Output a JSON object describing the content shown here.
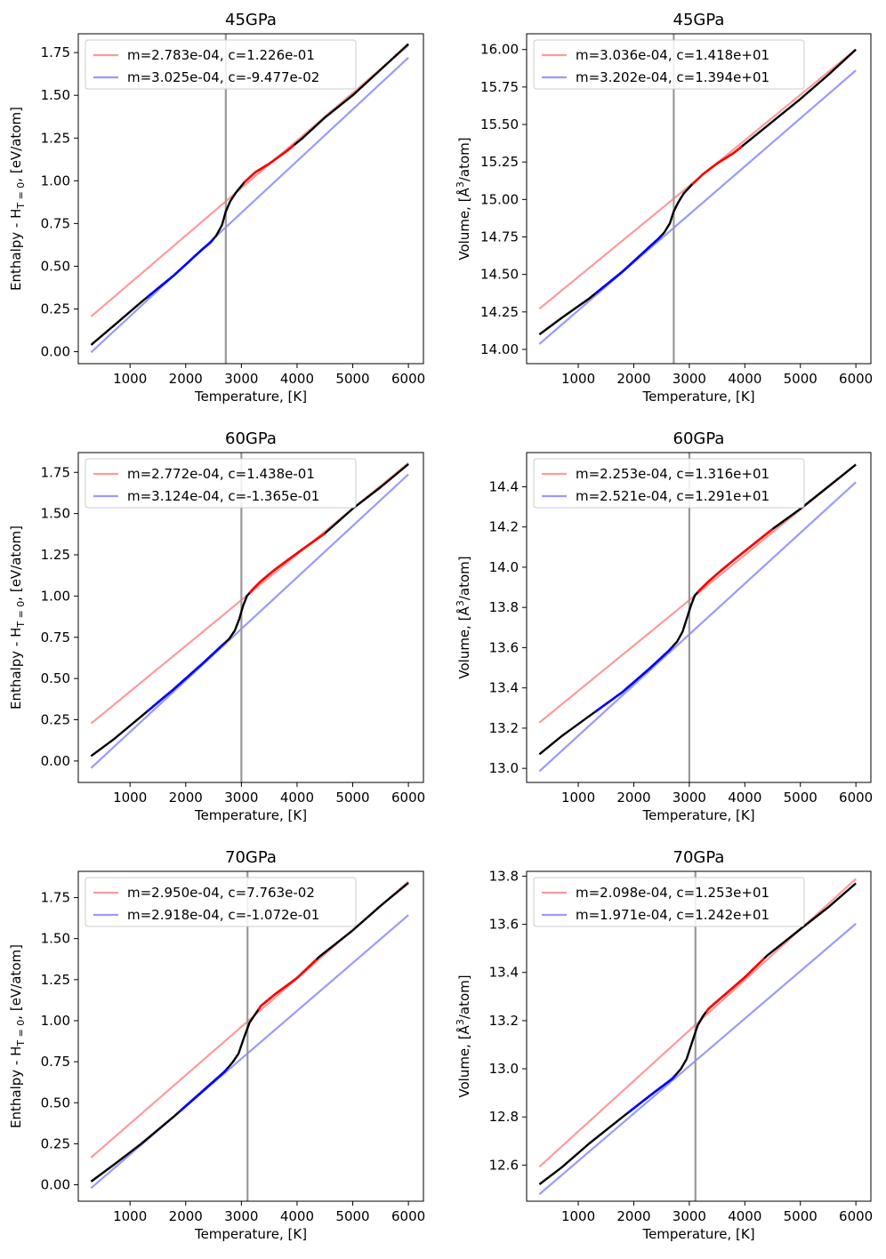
{
  "colors": {
    "red_fit": "#ff9a9a",
    "blue_fit": "#9a9aff",
    "red_data": "#ff0000",
    "blue_data": "#0000ff",
    "data": "#000000",
    "transition": "#999999"
  },
  "chart_data": [
    {
      "type": "line",
      "title": "45GPa",
      "xlabel": "Temperature, [K]",
      "ylabel": {
        "prefix": "Enthalpy - H",
        "sub": "T = 0",
        "suffix": ", [eV/atom]"
      },
      "xlim": [
        70,
        6270
      ],
      "ylim": [
        -0.07,
        1.86
      ],
      "xticks": [
        1000,
        2000,
        3000,
        4000,
        5000,
        6000
      ],
      "xtick_labels": [
        "1000",
        "2000",
        "3000",
        "4000",
        "5000",
        "6000"
      ],
      "yticks": [
        0.0,
        0.25,
        0.5,
        0.75,
        1.0,
        1.25,
        1.5,
        1.75
      ],
      "ytick_labels": [
        "0.00",
        "0.25",
        "0.50",
        "0.75",
        "1.00",
        "1.25",
        "1.50",
        "1.75"
      ],
      "transition_T": 2720,
      "legend": [
        "m=2.783e-04, c=1.226e-01",
        "m=3.025e-04, c=-9.477e-02"
      ],
      "fits": [
        {
          "m": 0.0002783,
          "c": 0.1226,
          "x": [
            300,
            6000
          ]
        },
        {
          "m": 0.0003025,
          "c": -0.09477,
          "x": [
            300,
            6000
          ]
        }
      ],
      "data": {
        "x": [
          300,
          700,
          1200,
          1800,
          2300,
          2450,
          2550,
          2650,
          2720,
          2800,
          2900,
          3050,
          3250,
          3500,
          3800,
          4100,
          4500,
          5000,
          5500,
          6000
        ],
        "y": [
          0.04,
          0.15,
          0.29,
          0.45,
          0.6,
          0.64,
          0.68,
          0.74,
          0.82,
          0.88,
          0.93,
          0.99,
          1.05,
          1.1,
          1.17,
          1.25,
          1.37,
          1.5,
          1.65,
          1.8
        ]
      },
      "colored_ranges": {
        "blue": [
          1300,
          2500
        ],
        "red": [
          3050,
          3950
        ]
      }
    },
    {
      "type": "line",
      "title": "45GPa",
      "xlabel": "Temperature, [K]",
      "ylabel": {
        "prefix": "Volume, [Å",
        "sup": "3",
        "suffix": "/atom]"
      },
      "xlim": [
        70,
        6270
      ],
      "ylim": [
        13.905,
        16.105
      ],
      "xticks": [
        1000,
        2000,
        3000,
        4000,
        5000,
        6000
      ],
      "xtick_labels": [
        "1000",
        "2000",
        "3000",
        "4000",
        "5000",
        "6000"
      ],
      "yticks": [
        14.0,
        14.25,
        14.5,
        14.75,
        15.0,
        15.25,
        15.5,
        15.75,
        16.0
      ],
      "ytick_labels": [
        "14.00",
        "14.25",
        "14.50",
        "14.75",
        "15.00",
        "15.25",
        "15.50",
        "15.75",
        "16.00"
      ],
      "transition_T": 2720,
      "legend": [
        "m=3.036e-04, c=1.418e+01",
        "m=3.202e-04, c=1.394e+01"
      ],
      "fits": [
        {
          "m": 0.0003036,
          "c": 14.18,
          "x": [
            300,
            6000
          ]
        },
        {
          "m": 0.0003202,
          "c": 13.94,
          "x": [
            300,
            6000
          ]
        }
      ],
      "data": {
        "x": [
          300,
          700,
          1200,
          1800,
          2300,
          2450,
          2550,
          2650,
          2720,
          2800,
          2900,
          3050,
          3250,
          3500,
          3800,
          4100,
          4500,
          5000,
          5500,
          6000
        ],
        "y": [
          14.1,
          14.21,
          14.34,
          14.52,
          14.69,
          14.74,
          14.78,
          14.84,
          14.92,
          14.98,
          15.04,
          15.1,
          15.17,
          15.24,
          15.31,
          15.4,
          15.52,
          15.67,
          15.83,
          16.0
        ]
      },
      "colored_ranges": {
        "blue": [
          1300,
          2500
        ],
        "red": [
          3050,
          3950
        ]
      }
    },
    {
      "type": "line",
      "title": "60GPa",
      "xlabel": "Temperature, [K]",
      "ylabel": {
        "prefix": "Enthalpy - H",
        "sub": "T = 0",
        "suffix": ", [eV/atom]"
      },
      "xlim": [
        70,
        6270
      ],
      "ylim": [
        -0.13,
        1.87
      ],
      "xticks": [
        1000,
        2000,
        3000,
        4000,
        5000,
        6000
      ],
      "xtick_labels": [
        "1000",
        "2000",
        "3000",
        "4000",
        "5000",
        "6000"
      ],
      "yticks": [
        0.0,
        0.25,
        0.5,
        0.75,
        1.0,
        1.25,
        1.5,
        1.75
      ],
      "ytick_labels": [
        "0.00",
        "0.25",
        "0.50",
        "0.75",
        "1.00",
        "1.25",
        "1.50",
        "1.75"
      ],
      "transition_T": 3000,
      "legend": [
        "m=2.772e-04, c=1.438e-01",
        "m=3.124e-04, c=-1.365e-01"
      ],
      "fits": [
        {
          "m": 0.0002772,
          "c": 0.1438,
          "x": [
            300,
            6000
          ]
        },
        {
          "m": 0.0003124,
          "c": -0.1365,
          "x": [
            300,
            6000
          ]
        }
      ],
      "data": {
        "x": [
          300,
          700,
          1200,
          1800,
          2300,
          2650,
          2780,
          2880,
          2960,
          3030,
          3100,
          3200,
          3350,
          3600,
          4000,
          4500,
          5000,
          5500,
          6000
        ],
        "y": [
          0.03,
          0.13,
          0.27,
          0.44,
          0.59,
          0.7,
          0.74,
          0.79,
          0.86,
          0.94,
          1.0,
          1.04,
          1.09,
          1.16,
          1.26,
          1.38,
          1.53,
          1.66,
          1.8
        ]
      },
      "colored_ranges": {
        "blue": [
          1300,
          2700
        ],
        "red": [
          3150,
          4500
        ]
      }
    },
    {
      "type": "line",
      "title": "60GPa",
      "xlabel": "Temperature, [K]",
      "ylabel": {
        "prefix": "Volume, [Å",
        "sup": "3",
        "suffix": "/atom]"
      },
      "xlim": [
        70,
        6270
      ],
      "ylim": [
        12.93,
        14.57
      ],
      "xticks": [
        1000,
        2000,
        3000,
        4000,
        5000,
        6000
      ],
      "xtick_labels": [
        "1000",
        "2000",
        "3000",
        "4000",
        "5000",
        "6000"
      ],
      "yticks": [
        13.0,
        13.2,
        13.4,
        13.6,
        13.8,
        14.0,
        14.2,
        14.4
      ],
      "ytick_labels": [
        "13.0",
        "13.2",
        "13.4",
        "13.6",
        "13.8",
        "14.0",
        "14.2",
        "14.4"
      ],
      "transition_T": 3000,
      "legend": [
        "m=2.253e-04, c=1.316e+01",
        "m=2.521e-04, c=1.291e+01"
      ],
      "fits": [
        {
          "m": 0.0002253,
          "c": 13.16,
          "x": [
            300,
            6000
          ]
        },
        {
          "m": 0.0002521,
          "c": 12.91,
          "x": [
            300,
            6000
          ]
        }
      ],
      "data": {
        "x": [
          300,
          700,
          1200,
          1800,
          2300,
          2650,
          2780,
          2880,
          2960,
          3030,
          3100,
          3200,
          3350,
          3600,
          4000,
          4500,
          5000,
          5500,
          6000
        ],
        "y": [
          13.07,
          13.16,
          13.26,
          13.38,
          13.5,
          13.59,
          13.63,
          13.68,
          13.75,
          13.81,
          13.86,
          13.89,
          13.93,
          13.99,
          14.08,
          14.19,
          14.29,
          14.4,
          14.51
        ]
      },
      "colored_ranges": {
        "blue": [
          1300,
          2700
        ],
        "red": [
          3150,
          4500
        ]
      }
    },
    {
      "type": "line",
      "title": "70GPa",
      "xlabel": "Temperature, [K]",
      "ylabel": {
        "prefix": "Enthalpy - H",
        "sub": "T = 0",
        "suffix": ", [eV/atom]"
      },
      "xlim": [
        70,
        6270
      ],
      "ylim": [
        -0.1,
        1.91
      ],
      "xticks": [
        1000,
        2000,
        3000,
        4000,
        5000,
        6000
      ],
      "xtick_labels": [
        "1000",
        "2000",
        "3000",
        "4000",
        "5000",
        "6000"
      ],
      "yticks": [
        0.0,
        0.25,
        0.5,
        0.75,
        1.0,
        1.25,
        1.5,
        1.75
      ],
      "ytick_labels": [
        "0.00",
        "0.25",
        "0.50",
        "0.75",
        "1.00",
        "1.25",
        "1.50",
        "1.75"
      ],
      "transition_T": 3110,
      "legend": [
        "m=2.950e-04, c=7.763e-02",
        "m=2.918e-04, c=-1.072e-01"
      ],
      "fits": [
        {
          "m": 0.000295,
          "c": 0.07763,
          "x": [
            300,
            6000
          ]
        },
        {
          "m": 0.0002918,
          "c": -0.1072,
          "x": [
            300,
            6000
          ]
        }
      ],
      "data": {
        "x": [
          300,
          700,
          1200,
          1800,
          2300,
          2700,
          2850,
          2950,
          3050,
          3150,
          3250,
          3350,
          3600,
          4000,
          4400,
          5000,
          5500,
          6000
        ],
        "y": [
          0.02,
          0.12,
          0.25,
          0.42,
          0.57,
          0.69,
          0.75,
          0.8,
          0.9,
          0.99,
          1.04,
          1.09,
          1.16,
          1.26,
          1.39,
          1.55,
          1.7,
          1.84
        ]
      },
      "colored_ranges": {
        "blue": [
          1900,
          2750
        ],
        "red": [
          3300,
          4350
        ]
      }
    },
    {
      "type": "line",
      "title": "70GPa",
      "xlabel": "Temperature, [K]",
      "ylabel": {
        "prefix": "Volume, [Å",
        "sup": "3",
        "suffix": "/atom]"
      },
      "xlim": [
        70,
        6270
      ],
      "ylim": [
        12.45,
        13.82
      ],
      "xticks": [
        1000,
        2000,
        3000,
        4000,
        5000,
        6000
      ],
      "xtick_labels": [
        "1000",
        "2000",
        "3000",
        "4000",
        "5000",
        "6000"
      ],
      "yticks": [
        12.6,
        12.8,
        13.0,
        13.2,
        13.4,
        13.6,
        13.8
      ],
      "ytick_labels": [
        "12.6",
        "12.8",
        "13.0",
        "13.2",
        "13.4",
        "13.6",
        "13.8"
      ],
      "transition_T": 3110,
      "legend": [
        "m=2.098e-04, c=1.253e+01",
        "m=1.971e-04, c=1.242e+01"
      ],
      "fits": [
        {
          "m": 0.0002098,
          "c": 12.53,
          "x": [
            300,
            6000
          ]
        },
        {
          "m": 0.0001971,
          "c": 12.42,
          "x": [
            300,
            6000
          ]
        }
      ],
      "data": {
        "x": [
          300,
          700,
          1200,
          1800,
          2300,
          2700,
          2850,
          2950,
          3050,
          3150,
          3250,
          3350,
          3600,
          4000,
          4400,
          5000,
          5500,
          6000
        ],
        "y": [
          12.52,
          12.59,
          12.69,
          12.8,
          12.89,
          12.96,
          13.0,
          13.04,
          13.11,
          13.18,
          13.22,
          13.25,
          13.3,
          13.38,
          13.47,
          13.58,
          13.67,
          13.77
        ]
      },
      "colored_ranges": {
        "blue": [
          1900,
          2750
        ],
        "red": [
          3300,
          4350
        ]
      }
    }
  ]
}
